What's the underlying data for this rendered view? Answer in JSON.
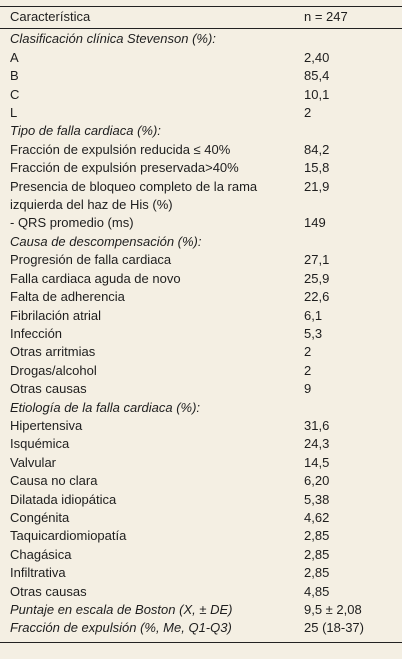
{
  "table": {
    "header": [
      "Característica",
      "n = 247"
    ],
    "sections": [
      {
        "title": "Clasificación clínica Stevenson (%):",
        "rows": [
          {
            "label": "A",
            "value": "2,40"
          },
          {
            "label": "B",
            "value": "85,4"
          },
          {
            "label": "C",
            "value": "10,1"
          },
          {
            "label": "L",
            "value": "2"
          }
        ]
      },
      {
        "title": "Tipo de falla cardiaca (%):",
        "rows": [
          {
            "label": "Fracción de expulsión reducida ≤ 40%",
            "value": "84,2"
          },
          {
            "label": "Fracción de expulsión preservada>40%",
            "value": "15,8"
          },
          {
            "label": "Presencia de bloqueo completo de la rama izquierda del haz de His (%)",
            "value": "21,9"
          },
          {
            "label": "- QRS promedio (ms)",
            "value": "149"
          }
        ]
      },
      {
        "title": "Causa de descompensación (%):",
        "rows": [
          {
            "label": "Progresión de falla cardiaca",
            "value": "27,1"
          },
          {
            "label": "Falla cardiaca aguda de novo",
            "value": "25,9"
          },
          {
            "label": "Falta de adherencia",
            "value": "22,6"
          },
          {
            "label": "Fibrilación atrial",
            "value": "6,1"
          },
          {
            "label": "Infección",
            "value": "5,3"
          },
          {
            "label": "Otras arritmias",
            "value": "2"
          },
          {
            "label": "Drogas/alcohol",
            "value": "2"
          },
          {
            "label": "Otras causas",
            "value": "9"
          }
        ]
      },
      {
        "title": "Etiología de la falla cardiaca (%):",
        "rows": [
          {
            "label": "Hipertensiva",
            "value": "31,6"
          },
          {
            "label": "Isquémica",
            "value": "24,3"
          },
          {
            "label": "Valvular",
            "value": "14,5"
          },
          {
            "label": "Causa no clara",
            "value": "6,20"
          },
          {
            "label": "Dilatada idiopática",
            "value": "5,38"
          },
          {
            "label": "Congénita",
            "value": "4,62"
          },
          {
            "label": "Taquicardiomiopatía",
            "value": "2,85"
          },
          {
            "label": "Chagásica",
            "value": "2,85"
          },
          {
            "label": "Infiltrativa",
            "value": "2,85"
          },
          {
            "label": "Otras causas",
            "value": "4,85"
          }
        ]
      }
    ],
    "summary_rows": [
      {
        "label": "Puntaje en escala de Boston (X, ± DE)",
        "value": "9,5 ± 2,08"
      },
      {
        "label": "Fracción de expulsión (%, Me, Q1-Q3)",
        "value": "25 (18-37)"
      }
    ]
  }
}
